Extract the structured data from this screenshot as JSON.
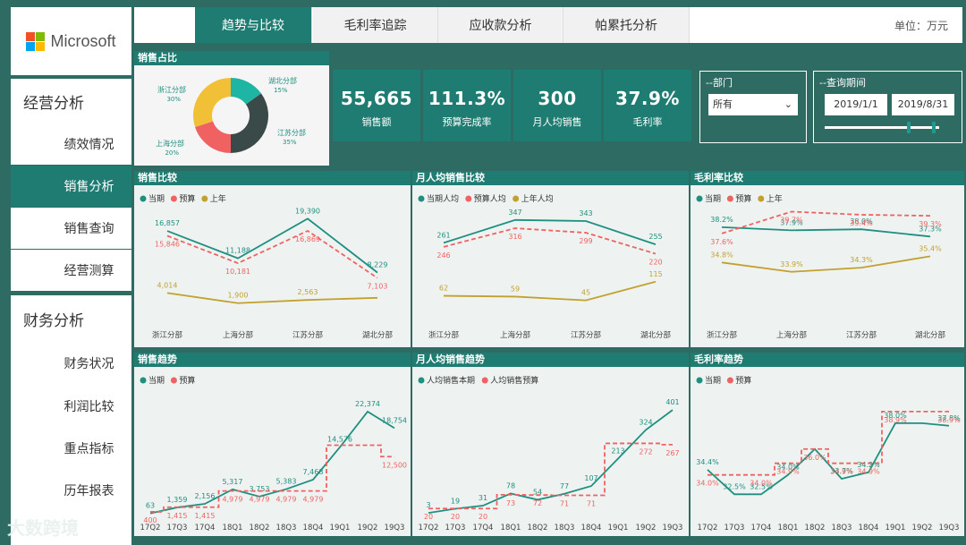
{
  "brand": {
    "name": "Microsoft",
    "colors": [
      "#f25022",
      "#7fba00",
      "#00a4ef",
      "#ffb900"
    ]
  },
  "tabs": [
    {
      "label": "趋势与比较",
      "active": true
    },
    {
      "label": "毛利率追踪",
      "active": false
    },
    {
      "label": "应收款分析",
      "active": false
    },
    {
      "label": "帕累托分析",
      "active": false
    }
  ],
  "unit_label": "单位：万元",
  "sidebar": {
    "group1": {
      "title": "经营分析",
      "items": [
        {
          "label": "绩效情况",
          "selected": false
        },
        {
          "label": "销售分析",
          "selected": true
        },
        {
          "label": "销售查询",
          "selected": false
        },
        {
          "label": "经营测算",
          "selected": false
        }
      ]
    },
    "group2": {
      "title": "财务分析",
      "items": [
        {
          "label": "财务状况"
        },
        {
          "label": "利润比较"
        },
        {
          "label": "重点指标"
        },
        {
          "label": "历年报表"
        }
      ]
    }
  },
  "kpis": [
    {
      "value": "55,665",
      "label": "销售额"
    },
    {
      "value": "111.3%",
      "label": "预算完成率"
    },
    {
      "value": "300",
      "label": "月人均销售"
    },
    {
      "value": "37.9%",
      "label": "毛利率"
    }
  ],
  "filters": {
    "department": {
      "title": "--部门",
      "value": "所有"
    },
    "period": {
      "title": "--查询期间",
      "start": "2019/1/1",
      "end": "2019/8/31",
      "range": [
        0.74,
        0.97
      ]
    }
  },
  "watermark": "大数跨境",
  "colors": {
    "current": "#1f8f80",
    "budget": "#f06262",
    "lastyear": "#c2a12e",
    "accent": "#1f7c72"
  },
  "chart_data": [
    {
      "id": "pie",
      "type": "pie",
      "title": "销售占比",
      "slices": [
        {
          "label": "湖北分部",
          "pct": "15%",
          "value": 15,
          "color": "#1fb5a5"
        },
        {
          "label": "江苏分部",
          "pct": "35%",
          "value": 35,
          "color": "#3a4a48"
        },
        {
          "label": "上海分部",
          "pct": "20%",
          "value": 20,
          "color": "#f06262"
        },
        {
          "label": "浙江分部",
          "pct": "30%",
          "value": 30,
          "color": "#f2c037"
        }
      ]
    },
    {
      "id": "sales_cmp",
      "type": "line",
      "title": "销售比较",
      "categories": [
        "浙江分部",
        "上海分部",
        "江苏分部",
        "湖北分部"
      ],
      "ylim": [
        0,
        21500
      ],
      "series": [
        {
          "name": "当期",
          "values": [
            16857,
            11188,
            19390,
            8229
          ],
          "labels": [
            "16,857",
            "11,188",
            "19,390",
            "8,229"
          ],
          "color": "#1f8f80",
          "dashed": false
        },
        {
          "name": "预算",
          "values": [
            15846,
            10181,
            16869,
            7103
          ],
          "labels": [
            "15,846",
            "10,181",
            "16,869",
            "7,103"
          ],
          "color": "#f06262",
          "dashed": true
        },
        {
          "name": "上年",
          "values": [
            4014,
            1900,
            2563,
            3000
          ],
          "labels": [
            "4,014",
            "1,900",
            "2,563",
            ""
          ],
          "color": "#c2a12e",
          "dashed": false
        }
      ]
    },
    {
      "id": "percap_cmp",
      "type": "line",
      "title": "月人均销售比较",
      "categories": [
        "浙江分部",
        "上海分部",
        "江苏分部",
        "湖北分部"
      ],
      "ylim": [
        0,
        390
      ],
      "series": [
        {
          "name": "当期人均",
          "values": [
            261,
            347,
            343,
            255
          ],
          "labels": [
            "261",
            "347",
            "343",
            "255"
          ],
          "color": "#1f8f80",
          "dashed": false
        },
        {
          "name": "预算人均",
          "values": [
            246,
            316,
            299,
            220
          ],
          "labels": [
            "246",
            "316",
            "299",
            "220"
          ],
          "color": "#f06262",
          "dashed": true
        },
        {
          "name": "上年人均",
          "values": [
            62,
            59,
            45,
            115
          ],
          "labels": [
            "62",
            "59",
            "45",
            "115"
          ],
          "color": "#c2a12e",
          "dashed": false
        }
      ]
    },
    {
      "id": "margin_cmp",
      "type": "line",
      "title": "毛利率比较",
      "categories": [
        "浙江分部",
        "上海分部",
        "江苏分部",
        "湖北分部"
      ],
      "ylim": [
        30,
        40
      ],
      "series": [
        {
          "name": "当期",
          "values": [
            38.2,
            37.9,
            38.0,
            37.3
          ],
          "labels": [
            "38.2%",
            "37.9%",
            "38.0%",
            "37.3%"
          ],
          "color": "#1f8f80",
          "dashed": false
        },
        {
          "name": "预算",
          "values": [
            37.6,
            39.7,
            39.4,
            39.3
          ],
          "labels": [
            "37.6%",
            "39.7%",
            "39.4%",
            "39.3%"
          ],
          "color": "#f06262",
          "dashed": true
        },
        {
          "name": "上年",
          "values": [
            34.8,
            33.9,
            34.3,
            35.4
          ],
          "labels": [
            "34.8%",
            "33.9%",
            "34.3%",
            "35.4%"
          ],
          "color": "#c2a12e",
          "dashed": false
        }
      ]
    },
    {
      "id": "sales_trend",
      "type": "line",
      "title": "销售趋势",
      "step": true,
      "categories": [
        "17Q2",
        "17Q3",
        "17Q4",
        "18Q1",
        "18Q2",
        "18Q3",
        "18Q4",
        "19Q1",
        "19Q2",
        "19Q3"
      ],
      "ylim": [
        0,
        25500
      ],
      "series": [
        {
          "name": "当期",
          "values": [
            63,
            1359,
            2156,
            5317,
            3753,
            5383,
            7468,
            14576,
            22374,
            18754
          ],
          "labels": [
            "63",
            "1,359",
            "2,156",
            "5,317",
            "3,753",
            "5,383",
            "7,468",
            "14,576",
            "22,374",
            "18,754"
          ],
          "color": "#1f8f80",
          "dashed": false
        },
        {
          "name": "预算",
          "values": [
            400,
            1415,
            1415,
            4979,
            4979,
            4979,
            4979,
            15000,
            15000,
            12500
          ],
          "labels": [
            "400",
            "1,415",
            "1,415",
            "4,979",
            "4,979",
            "4,979",
            "4,979",
            "",
            "",
            "12,500"
          ],
          "color": "#f06262",
          "dashed": true
        }
      ]
    },
    {
      "id": "percap_trend",
      "type": "line",
      "title": "月人均销售趋势",
      "step": true,
      "categories": [
        "17Q2",
        "17Q3",
        "17Q4",
        "18Q1",
        "18Q2",
        "18Q3",
        "18Q4",
        "19Q1",
        "19Q2",
        "19Q3"
      ],
      "ylim": [
        0,
        450
      ],
      "series": [
        {
          "name": "人均销售本期",
          "values": [
            3,
            19,
            31,
            78,
            54,
            77,
            107,
            213,
            324,
            401
          ],
          "labels": [
            "3",
            "19",
            "31",
            "78",
            "54",
            "77",
            "107",
            "213",
            "324",
            "401"
          ],
          "color": "#1f8f80",
          "dashed": false
        },
        {
          "name": "人均销售预算",
          "values": [
            20,
            20,
            20,
            73,
            72,
            71,
            71,
            272,
            272,
            267
          ],
          "labels": [
            "20",
            "20",
            "20",
            "73",
            "72",
            "71",
            "71",
            "",
            "272",
            "267"
          ],
          "color": "#f06262",
          "dashed": true
        }
      ]
    },
    {
      "id": "margin_trend",
      "type": "line",
      "title": "毛利率趋势",
      "step": true,
      "categories": [
        "17Q2",
        "17Q3",
        "17Q4",
        "18Q1",
        "18Q2",
        "18Q3",
        "18Q4",
        "19Q1",
        "19Q2",
        "19Q3"
      ],
      "ylim": [
        31,
        40
      ],
      "series": [
        {
          "name": "当期",
          "values": [
            34.4,
            32.5,
            32.5,
            34.0,
            36.0,
            33.7,
            34.2,
            38.0,
            38.0,
            37.8
          ],
          "labels": [
            "34.4%",
            "32.5%",
            "32.5%",
            "34.0%",
            "",
            "33.7%",
            "34.2%",
            "38.0%",
            "",
            "37.8%"
          ],
          "color": "#1f8f80",
          "dashed": false
        },
        {
          "name": "预算",
          "values": [
            34.0,
            34.0,
            34.0,
            34.9,
            36.0,
            34.9,
            34.9,
            38.9,
            38.9,
            38.9
          ],
          "labels": [
            "34.0%",
            "",
            "34.0%",
            "34.9%",
            "36.0%",
            "34.9%",
            "34.9%",
            "38.9%",
            "",
            "38.9%"
          ],
          "color": "#f06262",
          "dashed": true
        }
      ]
    }
  ]
}
